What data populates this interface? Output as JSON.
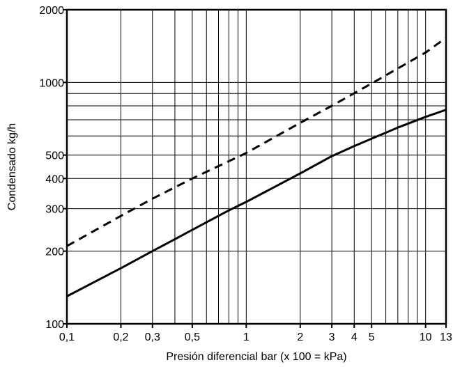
{
  "chart_data": {
    "type": "line",
    "title": "",
    "xlabel": "Presión diferencial bar (x 100 = kPa)",
    "ylabel": "Condensado kg/h",
    "x_scale": "log",
    "y_scale": "log",
    "xlim": [
      0.1,
      13
    ],
    "ylim": [
      100,
      2000
    ],
    "grid": true,
    "x_ticks": [
      {
        "value": 0.1,
        "label": "0,1"
      },
      {
        "value": 0.2,
        "label": "0,2"
      },
      {
        "value": 0.3,
        "label": "0,3"
      },
      {
        "value": 0.5,
        "label": "0,5"
      },
      {
        "value": 1,
        "label": "1"
      },
      {
        "value": 2,
        "label": "2"
      },
      {
        "value": 3,
        "label": "3"
      },
      {
        "value": 4,
        "label": "4"
      },
      {
        "value": 5,
        "label": "5"
      },
      {
        "value": 10,
        "label": "10"
      },
      {
        "value": 13,
        "label": "13"
      }
    ],
    "y_ticks": [
      {
        "value": 100,
        "label": "100"
      },
      {
        "value": 200,
        "label": "200"
      },
      {
        "value": 300,
        "label": "300"
      },
      {
        "value": 400,
        "label": "400"
      },
      {
        "value": 500,
        "label": "500"
      },
      {
        "value": 1000,
        "label": "1000"
      },
      {
        "value": 2000,
        "label": "2000"
      }
    ],
    "x_gridlines": [
      0.2,
      0.3,
      0.4,
      0.5,
      0.6,
      0.7,
      0.8,
      0.9,
      1,
      2,
      3,
      4,
      5,
      6,
      7,
      8,
      9,
      10
    ],
    "y_gridlines": [
      200,
      300,
      400,
      500,
      600,
      700,
      800,
      900,
      1000
    ],
    "series": [
      {
        "style": "dashed",
        "color": "#000000",
        "x": [
          0.1,
          0.2,
          0.3,
          0.5,
          1,
          2,
          3,
          5,
          10,
          13
        ],
        "y": [
          210,
          280,
          330,
          400,
          510,
          680,
          800,
          990,
          1330,
          1530
        ]
      },
      {
        "style": "solid",
        "color": "#000000",
        "x": [
          0.1,
          0.2,
          0.3,
          0.5,
          0.8,
          1,
          2,
          3,
          4,
          5,
          7,
          10,
          13
        ],
        "y": [
          130,
          170,
          200,
          245,
          295,
          320,
          420,
          495,
          545,
          585,
          650,
          720,
          770
        ]
      }
    ]
  }
}
